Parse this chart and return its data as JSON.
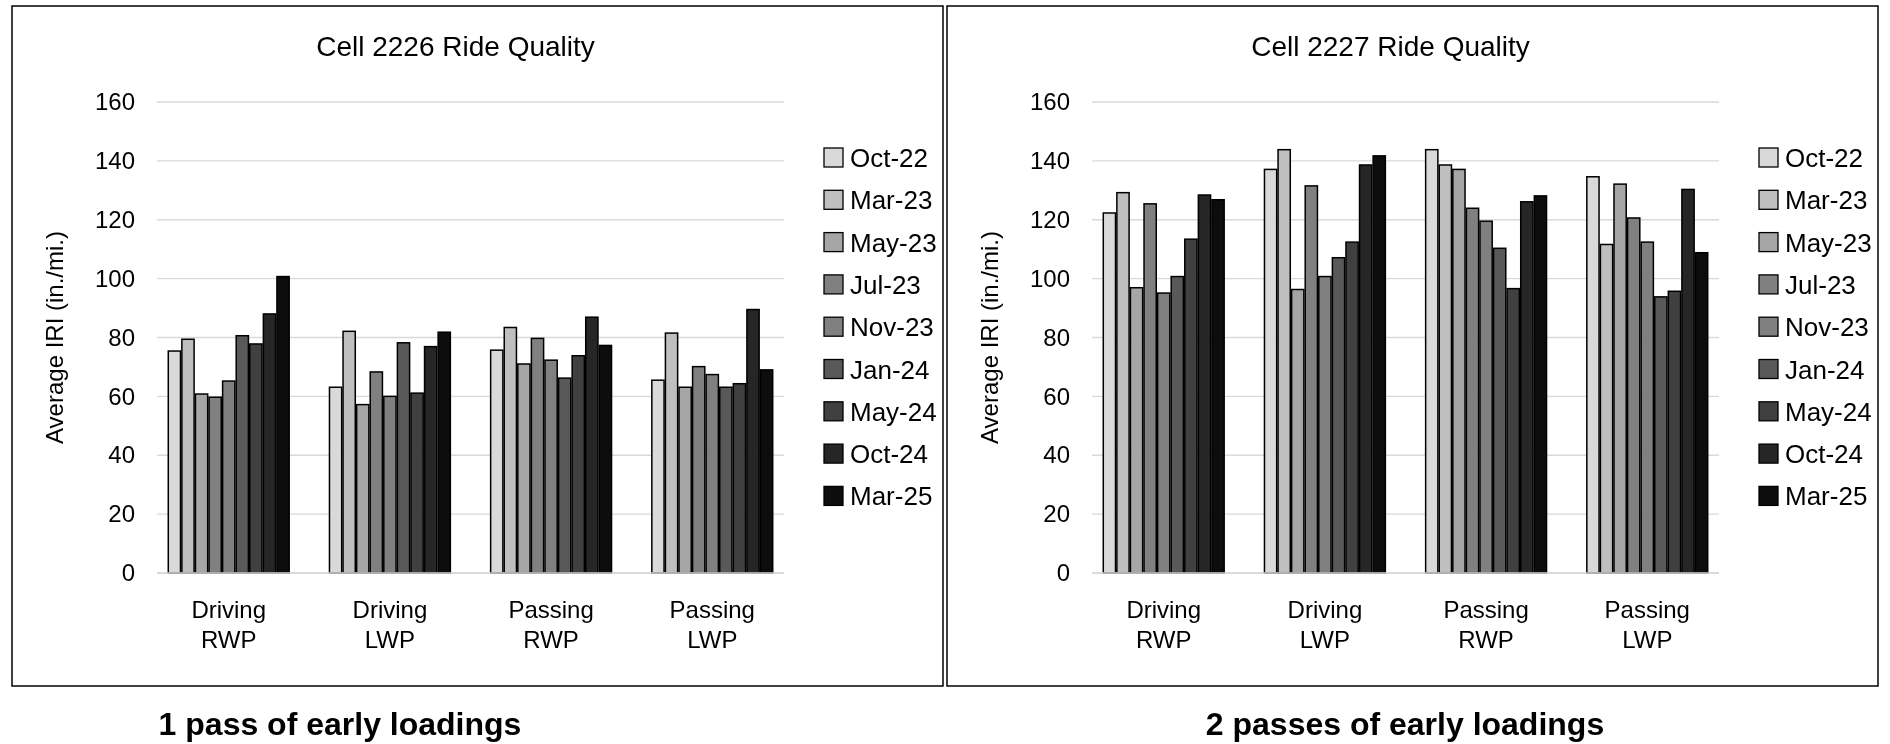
{
  "chart_data": [
    {
      "type": "bar",
      "title": "Cell 2226 Ride Quality",
      "ylabel": "Average IRI (in./mi.)",
      "annotations": [
        "1 pass of early loadings"
      ],
      "categories": [
        "Driving RWP",
        "Driving LWP",
        "Passing RWP",
        "Passing LWP"
      ],
      "ylim": [
        0,
        160
      ],
      "yticks": [
        0,
        20,
        40,
        60,
        80,
        100,
        120,
        140,
        160
      ],
      "grid": "y",
      "legend": "right",
      "series": [
        {
          "name": "Oct-22",
          "color": "#d9d9d9",
          "values": [
            75.4,
            63.1,
            75.7,
            65.5
          ]
        },
        {
          "name": "Mar-23",
          "color": "#bfbfbf",
          "values": [
            79.4,
            82.1,
            83.4,
            81.5
          ]
        },
        {
          "name": "May-23",
          "color": "#a6a6a6",
          "values": [
            60.8,
            57.2,
            71,
            63.1
          ]
        },
        {
          "name": "Jul-23",
          "color": "#808080",
          "values": [
            59.7,
            68.3,
            79.7,
            70.1
          ]
        },
        {
          "name": "Nov-23",
          "color": "#808080",
          "values": [
            65.2,
            60,
            72.3,
            67.4
          ]
        },
        {
          "name": "Jan-24",
          "color": "#595959",
          "values": [
            80.6,
            78.2,
            66.2,
            63.1
          ]
        },
        {
          "name": "May-24",
          "color": "#404040",
          "values": [
            77.8,
            61.1,
            73.8,
            64.3
          ]
        },
        {
          "name": "Oct-24",
          "color": "#262626",
          "values": [
            88,
            76.9,
            86.9,
            89.5
          ]
        },
        {
          "name": "Mar-25",
          "color": "#0d0d0d",
          "values": [
            100.7,
            81.8,
            77.3,
            69
          ]
        }
      ]
    },
    {
      "type": "bar",
      "title": "Cell 2227 Ride Quality",
      "ylabel": "Average IRI (in./mi.)",
      "annotations": [
        "2 passes of early loadings"
      ],
      "categories": [
        "Driving RWP",
        "Driving LWP",
        "Passing RWP",
        "Passing LWP"
      ],
      "ylim": [
        0,
        160
      ],
      "yticks": [
        0,
        20,
        40,
        60,
        80,
        100,
        120,
        140,
        160
      ],
      "grid": "y",
      "legend": "right",
      "series": [
        {
          "name": "Oct-22",
          "color": "#d9d9d9",
          "values": [
            122.3,
            137.1,
            143.8,
            134.6
          ]
        },
        {
          "name": "Mar-23",
          "color": "#bfbfbf",
          "values": [
            129.2,
            143.8,
            138.6,
            111.6
          ]
        },
        {
          "name": "May-23",
          "color": "#a6a6a6",
          "values": [
            96.9,
            96.3,
            137.1,
            132.1
          ]
        },
        {
          "name": "Jul-23",
          "color": "#808080",
          "values": [
            125.4,
            131.5,
            123.9,
            120.6
          ]
        },
        {
          "name": "Nov-23",
          "color": "#808080",
          "values": [
            95.1,
            100.7,
            119.5,
            112.4
          ]
        },
        {
          "name": "Jan-24",
          "color": "#595959",
          "values": [
            100.7,
            107.1,
            110.3,
            93.8
          ]
        },
        {
          "name": "May-24",
          "color": "#404040",
          "values": [
            113.4,
            112.4,
            96.6,
            95.7
          ]
        },
        {
          "name": "Oct-24",
          "color": "#262626",
          "values": [
            128.4,
            138.6,
            126.1,
            130.3
          ]
        },
        {
          "name": "Mar-25",
          "color": "#0d0d0d",
          "values": [
            126.8,
            141.7,
            128.1,
            108.8
          ]
        }
      ]
    }
  ]
}
